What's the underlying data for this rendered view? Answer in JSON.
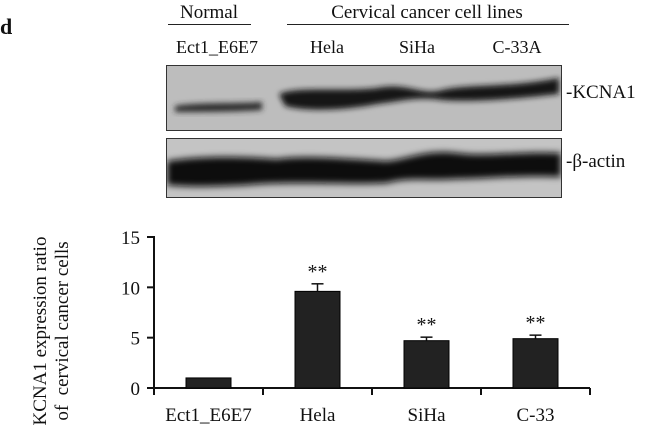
{
  "panel_label": "d",
  "groups": [
    {
      "label": "Normal"
    },
    {
      "label": "Cervical cancer cell lines"
    }
  ],
  "lanes": [
    "Ect1_E6E7",
    "Hela",
    "SiHa",
    "C-33A"
  ],
  "blots": [
    {
      "label": "-KCNA1"
    },
    {
      "label": "-β-actin"
    }
  ],
  "chart_data": {
    "type": "bar",
    "title": "",
    "xlabel": "",
    "ylabel": "KCNA1 expression ratio of cervical cancer cells",
    "ylabel_lines": [
      "KCNA1 expression ratio",
      "of  cervical cancer cells"
    ],
    "categories": [
      "Ect1_E6E7",
      "Hela",
      "SiHa",
      "C-33"
    ],
    "values": [
      1.0,
      9.6,
      4.7,
      4.9
    ],
    "error": [
      0.05,
      0.75,
      0.35,
      0.35
    ],
    "annotations": [
      "",
      "**",
      "**",
      "**"
    ],
    "yticks": [
      0,
      5,
      10,
      15
    ],
    "ylim": [
      0,
      15
    ],
    "grid": false,
    "bar_color": "#222222"
  }
}
